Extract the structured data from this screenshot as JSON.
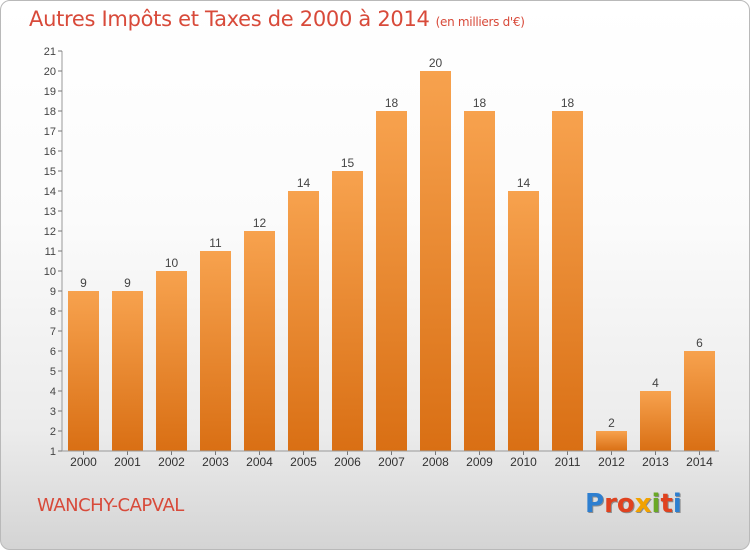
{
  "header": {
    "title": "Autres Impôts et Taxes de 2000 à 2014",
    "unit": "(en milliers d'€)"
  },
  "footer": {
    "place": "WANCHY-CAPVAL",
    "brand": "Proxiti"
  },
  "colors": {
    "title": "#d84a3a",
    "bar_top": "#f7a24e",
    "bar_bottom": "#d96f14",
    "logo_letters": [
      "#2e7fd0",
      "#e0421f",
      "#e0421f",
      "#f2a200",
      "#6aa826",
      "#e0421f",
      "#2e7fd0"
    ]
  },
  "chart_data": {
    "type": "bar",
    "categories": [
      "2000",
      "2001",
      "2002",
      "2003",
      "2004",
      "2005",
      "2006",
      "2007",
      "2008",
      "2009",
      "2010",
      "2011",
      "2012",
      "2013",
      "2014"
    ],
    "values": [
      9,
      9,
      10,
      11,
      12,
      14,
      15,
      18,
      20,
      18,
      14,
      18,
      2,
      4,
      6
    ],
    "ylim": [
      1,
      21
    ],
    "yticks": [
      1,
      2,
      3,
      4,
      5,
      6,
      7,
      8,
      9,
      10,
      11,
      12,
      13,
      14,
      15,
      16,
      17,
      18,
      19,
      20,
      21
    ],
    "xlabel": "",
    "ylabel": "",
    "data_labels": true,
    "grid": false
  }
}
